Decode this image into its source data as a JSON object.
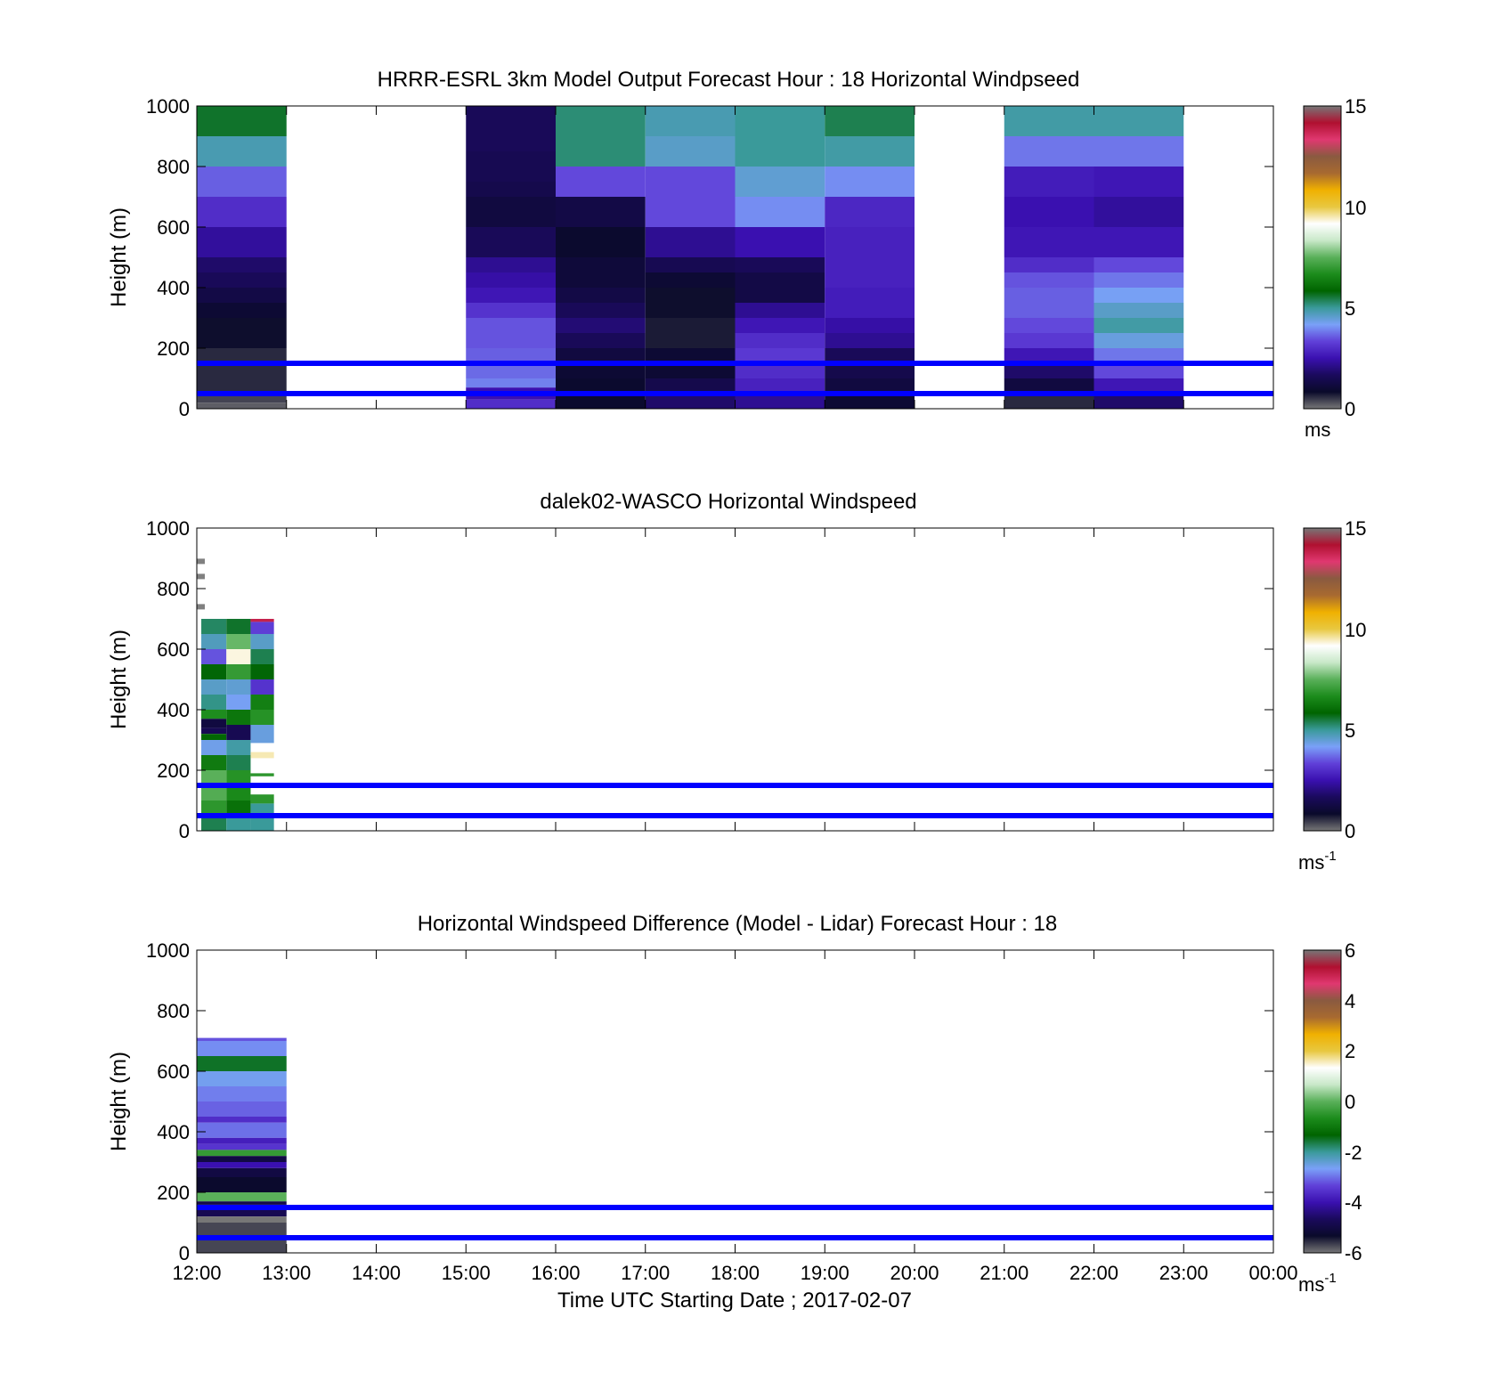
{
  "colorbar": {
    "stops": [
      "#777777",
      "#0a0a2a",
      "#1a0a5c",
      "#3a10b0",
      "#6040d8",
      "#7aa0f8",
      "#3a9a9a",
      "#006400",
      "#1c8c1c",
      "#5ab05a",
      "#c8e8c8",
      "#ffffff",
      "#e8c840",
      "#f0b000",
      "#a86a30",
      "#8a5a40",
      "#e03870",
      "#b01030",
      "#777777"
    ]
  },
  "shared": {
    "xlabel": "Time UTC  Starting Date ; 2017-02-07",
    "x_tick_labels": [
      "12:00",
      "13:00",
      "14:00",
      "15:00",
      "16:00",
      "17:00",
      "18:00",
      "19:00",
      "20:00",
      "21:00",
      "22:00",
      "23:00",
      "00:00"
    ],
    "ylabel": "Height (m)",
    "reference_lines_m": [
      150,
      50
    ],
    "reference_line_color": "#0000ff"
  },
  "chart_data": [
    {
      "type": "heatmap",
      "title": "HRRR-ESRL 3km Model Output   Forecast Hour : 18 Horizontal Windpseed",
      "ylabel": "Height (m)",
      "ylim": [
        0,
        1000
      ],
      "y_tick_labels": [
        "0",
        "200",
        "400",
        "600",
        "800",
        "1000"
      ],
      "colorbar": {
        "ticks": [
          "0",
          "5",
          "10",
          "15"
        ],
        "range": [
          0,
          15
        ],
        "unit": "ms",
        "unit_sup": ""
      },
      "hours": [
        {
          "hour": 0,
          "bins": [
            [
              1000,
              900,
              5.6
            ],
            [
              900,
              800,
              4.8
            ],
            [
              800,
              700,
              3.6
            ],
            [
              700,
              600,
              3.0
            ],
            [
              600,
              500,
              2.3
            ],
            [
              500,
              450,
              1.8
            ],
            [
              450,
              400,
              1.6
            ],
            [
              400,
              350,
              1.3
            ],
            [
              350,
              300,
              1.0
            ],
            [
              300,
              200,
              0.8
            ],
            [
              200,
              150,
              0.6
            ],
            [
              150,
              50,
              0.6
            ],
            [
              50,
              20,
              0.4
            ],
            [
              20,
              0,
              0.2
            ]
          ]
        },
        {
          "hour": 3,
          "bins": [
            [
              1000,
              850,
              1.6
            ],
            [
              850,
              750,
              1.5
            ],
            [
              750,
              700,
              1.4
            ],
            [
              700,
              600,
              1.2
            ],
            [
              600,
              500,
              1.6
            ],
            [
              500,
              450,
              2.2
            ],
            [
              450,
              400,
              2.4
            ],
            [
              400,
              350,
              2.6
            ],
            [
              350,
              300,
              3.1
            ],
            [
              300,
              200,
              3.5
            ],
            [
              200,
              150,
              3.6
            ],
            [
              150,
              100,
              3.7
            ],
            [
              100,
              70,
              3.9
            ],
            [
              70,
              30,
              2.5
            ],
            [
              30,
              0,
              3.0
            ]
          ]
        },
        {
          "hour": 4,
          "bins": [
            [
              1000,
              800,
              5.2
            ],
            [
              800,
              700,
              3.4
            ],
            [
              700,
              600,
              1.3
            ],
            [
              600,
              500,
              0.9
            ],
            [
              500,
              400,
              1.1
            ],
            [
              400,
              350,
              1.3
            ],
            [
              350,
              300,
              1.6
            ],
            [
              300,
              250,
              1.9
            ],
            [
              250,
              200,
              1.6
            ],
            [
              200,
              150,
              1.2
            ],
            [
              150,
              100,
              1.0
            ],
            [
              100,
              0,
              0.9
            ]
          ]
        },
        {
          "hour": 5,
          "bins": [
            [
              1000,
              900,
              4.8
            ],
            [
              900,
              800,
              4.6
            ],
            [
              800,
              600,
              3.4
            ],
            [
              600,
              500,
              2.2
            ],
            [
              500,
              450,
              1.5
            ],
            [
              450,
              400,
              1.0
            ],
            [
              400,
              300,
              0.8
            ],
            [
              300,
              200,
              0.7
            ],
            [
              200,
              100,
              1.0
            ],
            [
              100,
              50,
              1.4
            ],
            [
              50,
              0,
              1.8
            ]
          ]
        },
        {
          "hour": 6,
          "bins": [
            [
              1000,
              800,
              5.0
            ],
            [
              800,
              700,
              4.5
            ],
            [
              700,
              600,
              4.0
            ],
            [
              600,
              500,
              2.5
            ],
            [
              500,
              450,
              1.6
            ],
            [
              450,
              350,
              1.3
            ],
            [
              350,
              300,
              2.2
            ],
            [
              300,
              250,
              2.6
            ],
            [
              250,
              200,
              3.0
            ],
            [
              200,
              150,
              3.2
            ],
            [
              150,
              100,
              3.0
            ],
            [
              100,
              50,
              2.8
            ],
            [
              50,
              0,
              2.2
            ]
          ]
        },
        {
          "hour": 7,
          "bins": [
            [
              1000,
              900,
              5.4
            ],
            [
              900,
              800,
              4.9
            ],
            [
              800,
              700,
              4.0
            ],
            [
              700,
              600,
              2.9
            ],
            [
              600,
              400,
              2.8
            ],
            [
              400,
              300,
              2.7
            ],
            [
              300,
              250,
              2.4
            ],
            [
              250,
              200,
              2.2
            ],
            [
              200,
              150,
              1.6
            ],
            [
              150,
              100,
              1.4
            ],
            [
              100,
              50,
              1.2
            ],
            [
              50,
              0,
              1.0
            ]
          ]
        },
        {
          "hour": 9,
          "bins": [
            [
              1000,
              900,
              4.9
            ],
            [
              900,
              800,
              3.8
            ],
            [
              800,
              700,
              2.7
            ],
            [
              700,
              600,
              2.5
            ],
            [
              600,
              500,
              2.6
            ],
            [
              500,
              450,
              3.0
            ],
            [
              450,
              400,
              3.5
            ],
            [
              400,
              300,
              3.6
            ],
            [
              300,
              250,
              3.4
            ],
            [
              250,
              200,
              3.2
            ],
            [
              200,
              150,
              2.6
            ],
            [
              150,
              100,
              1.8
            ],
            [
              100,
              50,
              1.2
            ],
            [
              50,
              0,
              0.6
            ]
          ]
        },
        {
          "hour": 10,
          "bins": [
            [
              1000,
              900,
              4.9
            ],
            [
              900,
              800,
              3.8
            ],
            [
              800,
              700,
              2.6
            ],
            [
              700,
              600,
              2.3
            ],
            [
              600,
              500,
              2.6
            ],
            [
              500,
              450,
              3.4
            ],
            [
              450,
              400,
              3.8
            ],
            [
              400,
              350,
              4.2
            ],
            [
              350,
              300,
              4.6
            ],
            [
              300,
              250,
              4.9
            ],
            [
              250,
              200,
              4.4
            ],
            [
              200,
              150,
              3.8
            ],
            [
              150,
              100,
              3.4
            ],
            [
              100,
              50,
              2.6
            ],
            [
              50,
              0,
              1.8
            ]
          ]
        }
      ]
    },
    {
      "type": "heatmap",
      "title": "dalek02-WASCO  Horizontal Windspeed",
      "ylabel": "Height (m)",
      "ylim": [
        0,
        1000
      ],
      "y_tick_labels": [
        "0",
        "200",
        "400",
        "600",
        "800",
        "1000"
      ],
      "colorbar": {
        "ticks": [
          "0",
          "5",
          "10",
          "15"
        ],
        "range": [
          0,
          15
        ],
        "unit": "ms",
        "unit_sup": "-1"
      },
      "columns": [
        {
          "t0": 0.05,
          "t1": 0.33,
          "bins": [
            [
              700,
              650,
              5.3
            ],
            [
              650,
              600,
              4.7
            ],
            [
              600,
              550,
              3.5
            ],
            [
              550,
              500,
              5.8
            ],
            [
              500,
              450,
              4.6
            ],
            [
              450,
              400,
              5.1
            ],
            [
              400,
              370,
              6.7
            ],
            [
              370,
              340,
              1.2
            ],
            [
              340,
              320,
              1.5
            ],
            [
              320,
              300,
              5.9
            ],
            [
              300,
              250,
              4.3
            ],
            [
              250,
              200,
              6.3
            ],
            [
              200,
              150,
              7.5
            ],
            [
              150,
              100,
              7.4
            ],
            [
              100,
              50,
              6.9
            ],
            [
              50,
              0,
              5.4
            ]
          ]
        },
        {
          "t0": 0.33,
          "t1": 0.6,
          "bins": [
            [
              700,
              650,
              5.6
            ],
            [
              650,
              600,
              7.6
            ],
            [
              600,
              550,
              9.3
            ],
            [
              550,
              500,
              7.0
            ],
            [
              500,
              450,
              4.5
            ],
            [
              450,
              400,
              4.2
            ],
            [
              400,
              350,
              6.2
            ],
            [
              350,
              300,
              1.5
            ],
            [
              300,
              250,
              4.9
            ],
            [
              250,
              200,
              5.4
            ],
            [
              200,
              150,
              6.8
            ],
            [
              150,
              100,
              6.6
            ],
            [
              100,
              50,
              6.1
            ],
            [
              50,
              0,
              5.0
            ]
          ]
        },
        {
          "t0": 0.6,
          "t1": 0.86,
          "bins": [
            [
              700,
              690,
              13.8
            ],
            [
              690,
              650,
              3.3
            ],
            [
              650,
              600,
              4.6
            ],
            [
              600,
              550,
              5.4
            ],
            [
              550,
              500,
              5.8
            ],
            [
              500,
              450,
              3.1
            ],
            [
              450,
              400,
              6.4
            ],
            [
              400,
              350,
              6.8
            ],
            [
              350,
              290,
              4.4
            ],
            [
              260,
              240,
              9.5
            ],
            [
              190,
              180,
              6.9
            ],
            [
              120,
              90,
              6.9
            ],
            [
              90,
              0,
              5.0
            ]
          ]
        }
      ],
      "gray_marks_m": [
        890,
        840,
        740
      ]
    },
    {
      "type": "heatmap",
      "title": "Horizontal Windspeed Difference (Model - Lidar) Forecast Hour : 18",
      "ylabel": "Height (m)",
      "ylim": [
        0,
        1000
      ],
      "y_tick_labels": [
        "0",
        "200",
        "400",
        "600",
        "800",
        "1000"
      ],
      "colorbar": {
        "ticks": [
          "-6",
          "-4",
          "-2",
          "0",
          "2",
          "4",
          "6"
        ],
        "range": [
          -6,
          6
        ],
        "unit": "ms",
        "unit_sup": "-1"
      },
      "columns": [
        {
          "t0": 0,
          "t1": 1,
          "bins": [
            [
              710,
              700,
              -3.2
            ],
            [
              700,
              650,
              -2.8
            ],
            [
              650,
              600,
              -1.5
            ],
            [
              600,
              550,
              -2.6
            ],
            [
              550,
              500,
              -2.9
            ],
            [
              500,
              450,
              -3.1
            ],
            [
              450,
              430,
              -3.6
            ],
            [
              430,
              380,
              -3.0
            ],
            [
              380,
              360,
              -3.8
            ],
            [
              360,
              340,
              -3.5
            ],
            [
              340,
              320,
              -0.4
            ],
            [
              320,
              300,
              -5.0
            ],
            [
              300,
              280,
              -4.0
            ],
            [
              280,
              250,
              -5.0
            ],
            [
              250,
              200,
              -5.3
            ],
            [
              200,
              170,
              0
            ],
            [
              170,
              160,
              -4.9
            ],
            [
              160,
              150,
              -5.2
            ],
            [
              150,
              120,
              -4.8
            ],
            [
              120,
              100,
              -6.3
            ],
            [
              100,
              0,
              -5.7
            ]
          ]
        }
      ]
    }
  ]
}
